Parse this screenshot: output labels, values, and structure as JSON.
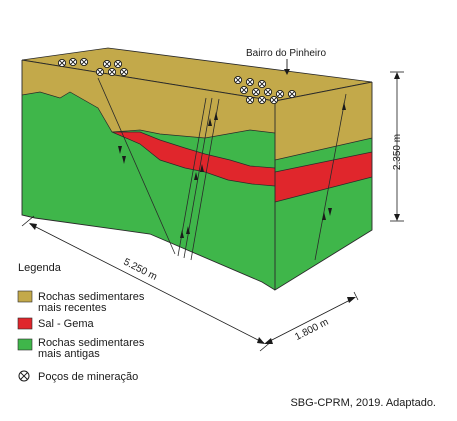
{
  "diagram": {
    "location_label": "Bairro do Pinheiro",
    "dimensions": {
      "height": "2.350 m",
      "length": "5.250 m",
      "width": "1.800 m"
    }
  },
  "legend": {
    "title": "Legenda",
    "items": [
      {
        "label_line1": "Rochas sedimentares",
        "label_line2": "mais recentes",
        "color": "#c3a94a"
      },
      {
        "label_line1": "Sal - Gema",
        "label_line2": "",
        "color": "#e0262c"
      },
      {
        "label_line1": "Rochas sedimentares",
        "label_line2": "mais antigas",
        "color": "#3fb64a"
      },
      {
        "label_line1": "Poços de mineração",
        "label_line2": "",
        "icon": "crossed-circle-icon"
      }
    ]
  },
  "source": "SBG-CPRM, 2019. Adaptado."
}
